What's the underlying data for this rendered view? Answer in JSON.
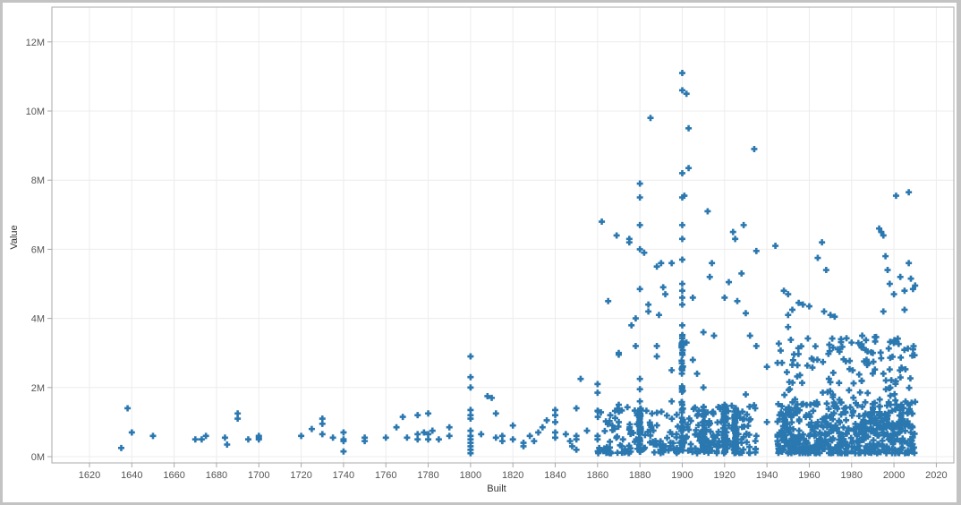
{
  "chart_data": {
    "type": "scatter",
    "title": "",
    "xlabel": "Built",
    "ylabel": "Value",
    "xlim": [
      1605,
      2029
    ],
    "ylim": [
      0,
      12.9
    ],
    "y_unit": "M",
    "grid": true,
    "legend": null,
    "marker": "plus",
    "color": "#2b78b0",
    "x_ticks": [
      1620,
      1640,
      1660,
      1680,
      1700,
      1720,
      1740,
      1760,
      1780,
      1800,
      1820,
      1840,
      1860,
      1880,
      1900,
      1920,
      1940,
      1960,
      1980,
      2000,
      2020
    ],
    "y_ticks": [
      0,
      2,
      4,
      6,
      8,
      10,
      12
    ],
    "y_tick_labels": [
      "0M",
      "2M",
      "4M",
      "6M",
      "8M",
      "10M",
      "12M"
    ],
    "points": [
      [
        1635,
        0.25
      ],
      [
        1638,
        1.4
      ],
      [
        1640,
        0.7
      ],
      [
        1650,
        0.6
      ],
      [
        1670,
        0.5
      ],
      [
        1673,
        0.5
      ],
      [
        1675,
        0.6
      ],
      [
        1684,
        0.55
      ],
      [
        1685,
        0.35
      ],
      [
        1690,
        1.1
      ],
      [
        1690,
        1.25
      ],
      [
        1695,
        0.5
      ],
      [
        1700,
        0.6
      ],
      [
        1700,
        0.5
      ],
      [
        1700,
        0.55
      ],
      [
        1720,
        0.6
      ],
      [
        1725,
        0.8
      ],
      [
        1730,
        1.1
      ],
      [
        1730,
        0.95
      ],
      [
        1730,
        0.65
      ],
      [
        1735,
        0.55
      ],
      [
        1740,
        0.7
      ],
      [
        1740,
        0.5
      ],
      [
        1740,
        0.45
      ],
      [
        1740,
        0.15
      ],
      [
        1750,
        0.55
      ],
      [
        1750,
        0.45
      ],
      [
        1760,
        0.55
      ],
      [
        1765,
        0.85
      ],
      [
        1768,
        1.15
      ],
      [
        1770,
        0.55
      ],
      [
        1775,
        1.2
      ],
      [
        1775,
        0.65
      ],
      [
        1775,
        0.5
      ],
      [
        1778,
        0.7
      ],
      [
        1780,
        1.25
      ],
      [
        1780,
        0.5
      ],
      [
        1780,
        0.65
      ],
      [
        1782,
        0.75
      ],
      [
        1785,
        0.5
      ],
      [
        1790,
        0.6
      ],
      [
        1790,
        0.85
      ],
      [
        1800,
        2.9
      ],
      [
        1800,
        2.3
      ],
      [
        1800,
        2.0
      ],
      [
        1800,
        1.35
      ],
      [
        1800,
        1.2
      ],
      [
        1800,
        1.1
      ],
      [
        1800,
        0.6
      ],
      [
        1800,
        0.5
      ],
      [
        1800,
        0.4
      ],
      [
        1800,
        0.3
      ],
      [
        1800,
        0.2
      ],
      [
        1800,
        0.1
      ],
      [
        1800,
        0.75
      ],
      [
        1805,
        0.65
      ],
      [
        1808,
        1.75
      ],
      [
        1810,
        1.7
      ],
      [
        1812,
        1.25
      ],
      [
        1812,
        0.55
      ],
      [
        1815,
        0.45
      ],
      [
        1815,
        0.6
      ],
      [
        1820,
        0.9
      ],
      [
        1820,
        0.5
      ],
      [
        1825,
        0.4
      ],
      [
        1825,
        0.3
      ],
      [
        1828,
        0.6
      ],
      [
        1830,
        0.45
      ],
      [
        1832,
        0.7
      ],
      [
        1834,
        0.85
      ],
      [
        1836,
        1.05
      ],
      [
        1840,
        1.35
      ],
      [
        1840,
        1.2
      ],
      [
        1840,
        1.0
      ],
      [
        1840,
        0.7
      ],
      [
        1840,
        0.55
      ],
      [
        1845,
        0.65
      ],
      [
        1847,
        0.45
      ],
      [
        1848,
        0.3
      ],
      [
        1850,
        0.5
      ],
      [
        1850,
        0.6
      ],
      [
        1850,
        0.2
      ],
      [
        1850,
        1.4
      ],
      [
        1852,
        2.25
      ],
      [
        1855,
        0.75
      ],
      [
        1860,
        2.1
      ],
      [
        1860,
        1.85
      ],
      [
        1860,
        0.6
      ],
      [
        1860,
        0.5
      ],
      [
        1862,
        6.8
      ],
      [
        1865,
        4.5
      ],
      [
        1866,
        1.2
      ],
      [
        1867,
        0.9
      ],
      [
        1868,
        0.8
      ],
      [
        1869,
        6.4
      ],
      [
        1870,
        3.0
      ],
      [
        1870,
        2.95
      ],
      [
        1870,
        1.5
      ],
      [
        1870,
        1.3
      ],
      [
        1870,
        1.0
      ],
      [
        1872,
        0.5
      ],
      [
        1875,
        6.3
      ],
      [
        1875,
        6.2
      ],
      [
        1878,
        4.0
      ],
      [
        1876,
        3.8
      ],
      [
        1878,
        3.2
      ],
      [
        1880,
        7.9
      ],
      [
        1880,
        7.5
      ],
      [
        1880,
        6.7
      ],
      [
        1880,
        6.0
      ],
      [
        1880,
        4.85
      ],
      [
        1880,
        2.25
      ],
      [
        1880,
        1.95
      ],
      [
        1880,
        1.6
      ],
      [
        1880,
        1.1
      ],
      [
        1880,
        0.8
      ],
      [
        1880,
        0.5
      ],
      [
        1882,
        5.9
      ],
      [
        1884,
        4.4
      ],
      [
        1884,
        4.2
      ],
      [
        1885,
        9.8
      ],
      [
        1888,
        5.5
      ],
      [
        1888,
        3.2
      ],
      [
        1888,
        2.9
      ],
      [
        1889,
        4.1
      ],
      [
        1890,
        5.6
      ],
      [
        1891,
        4.9
      ],
      [
        1892,
        4.7
      ],
      [
        1895,
        5.6
      ],
      [
        1895,
        2.5
      ],
      [
        1895,
        1.6
      ],
      [
        1900,
        11.1
      ],
      [
        1900,
        10.6
      ],
      [
        1900,
        8.2
      ],
      [
        1900,
        7.5
      ],
      [
        1900,
        6.7
      ],
      [
        1900,
        6.3
      ],
      [
        1900,
        5.7
      ],
      [
        1900,
        5.0
      ],
      [
        1900,
        4.8
      ],
      [
        1900,
        4.6
      ],
      [
        1900,
        4.4
      ],
      [
        1900,
        3.8
      ],
      [
        1900,
        3.5
      ],
      [
        1900,
        3.0
      ],
      [
        1900,
        2.5
      ],
      [
        1900,
        2.0
      ],
      [
        1900,
        1.5
      ],
      [
        1900,
        1.0
      ],
      [
        1900,
        0.6
      ],
      [
        1900,
        0.3
      ],
      [
        1902,
        10.5
      ],
      [
        1903,
        9.5
      ],
      [
        1903,
        8.35
      ],
      [
        1901,
        7.55
      ],
      [
        1902,
        3.3
      ],
      [
        1905,
        4.6
      ],
      [
        1905,
        2.8
      ],
      [
        1907,
        2.4
      ],
      [
        1910,
        3.6
      ],
      [
        1910,
        2.0
      ],
      [
        1912,
        7.1
      ],
      [
        1913,
        5.2
      ],
      [
        1914,
        5.6
      ],
      [
        1915,
        3.5
      ],
      [
        1920,
        4.6
      ],
      [
        1920,
        1.5
      ],
      [
        1920,
        0.5
      ],
      [
        1922,
        5.05
      ],
      [
        1924,
        6.5
      ],
      [
        1925,
        6.3
      ],
      [
        1926,
        4.5
      ],
      [
        1928,
        5.3
      ],
      [
        1929,
        6.7
      ],
      [
        1930,
        4.15
      ],
      [
        1930,
        1.8
      ],
      [
        1932,
        3.5
      ],
      [
        1934,
        8.9
      ],
      [
        1935,
        5.95
      ],
      [
        1935,
        3.2
      ],
      [
        1940,
        2.6
      ],
      [
        1940,
        1.0
      ],
      [
        1944,
        6.1
      ],
      [
        1948,
        4.8
      ],
      [
        1950,
        4.7
      ],
      [
        1950,
        4.1
      ],
      [
        1950,
        3.75
      ],
      [
        1952,
        4.25
      ],
      [
        1955,
        4.45
      ],
      [
        1957,
        4.4
      ],
      [
        1960,
        4.35
      ],
      [
        1962,
        2.8
      ],
      [
        1964,
        5.75
      ],
      [
        1966,
        6.2
      ],
      [
        1967,
        4.2
      ],
      [
        1968,
        5.4
      ],
      [
        1970,
        4.1
      ],
      [
        1972,
        4.05
      ],
      [
        1975,
        3.4
      ],
      [
        1980,
        3.3
      ],
      [
        1985,
        3.5
      ],
      [
        1988,
        2.7
      ],
      [
        1990,
        3.0
      ],
      [
        1993,
        6.6
      ],
      [
        1994,
        6.5
      ],
      [
        1995,
        6.4
      ],
      [
        1995,
        4.2
      ],
      [
        1996,
        5.8
      ],
      [
        1997,
        5.4
      ],
      [
        1998,
        5.0
      ],
      [
        2000,
        4.7
      ],
      [
        2001,
        7.55
      ],
      [
        2003,
        5.2
      ],
      [
        2005,
        4.8
      ],
      [
        2005,
        4.25
      ],
      [
        2007,
        7.65
      ],
      [
        2007,
        5.6
      ],
      [
        2008,
        5.15
      ],
      [
        2009,
        4.85
      ],
      [
        2010,
        4.95
      ],
      [
        1920,
        0.3
      ],
      [
        1922,
        0.9
      ],
      [
        1925,
        0.7
      ],
      [
        1928,
        0.4
      ],
      [
        1935,
        0.6
      ],
      [
        1945,
        0.45
      ],
      [
        1950,
        0.3
      ],
      [
        1955,
        0.5
      ],
      [
        1960,
        0.6
      ],
      [
        1965,
        0.7
      ],
      [
        1970,
        0.5
      ],
      [
        1975,
        0.65
      ],
      [
        1980,
        0.4
      ],
      [
        1985,
        0.55
      ],
      [
        1990,
        0.2
      ],
      [
        1995,
        0.8
      ],
      [
        2000,
        0.6
      ],
      [
        2005,
        0.9
      ],
      [
        2008,
        0.7
      ]
    ],
    "dense_regions": [
      {
        "x_range": [
          1860,
          1935
        ],
        "y_range": [
          0.1,
          1.5
        ],
        "density": "high"
      },
      {
        "x_range": [
          1945,
          2010
        ],
        "y_range": [
          0.1,
          1.6
        ],
        "density": "very_high"
      },
      {
        "x_range": [
          1945,
          2010
        ],
        "y_range": [
          1.5,
          3.5
        ],
        "density": "medium"
      }
    ]
  }
}
